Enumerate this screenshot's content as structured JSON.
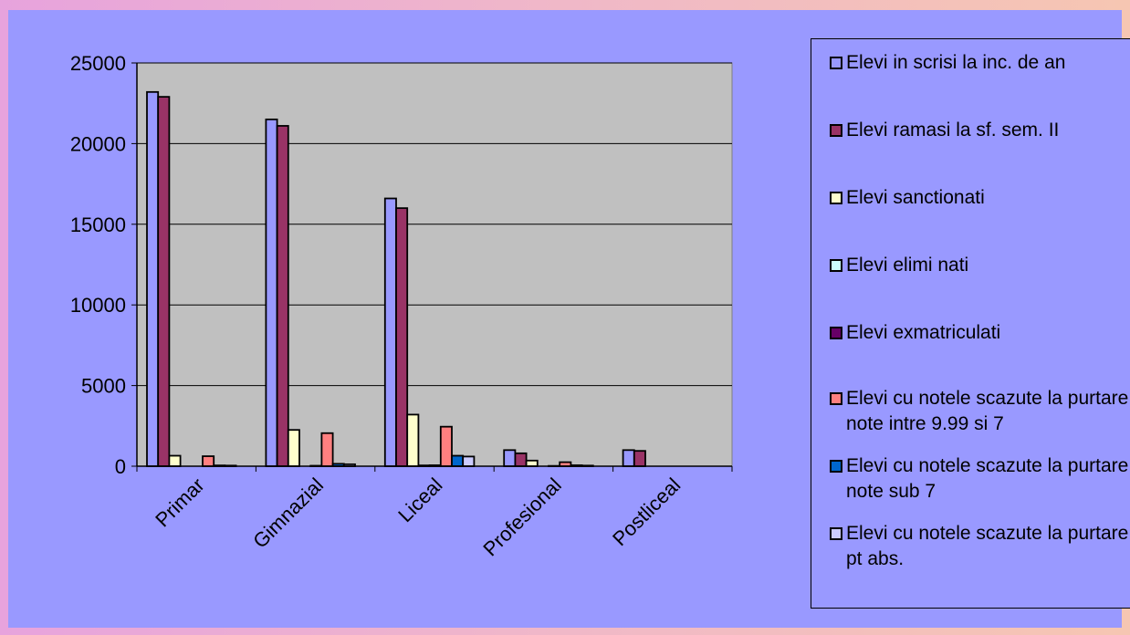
{
  "chart_data": {
    "type": "bar",
    "categories": [
      "Primar",
      "Gimnazial",
      "Liceal",
      "Profesional",
      "Postliceal"
    ],
    "ylim": [
      0,
      25000
    ],
    "yticks": [
      0,
      5000,
      10000,
      15000,
      20000,
      25000
    ],
    "ytick_labels": [
      "0",
      "5000",
      "10000",
      "15000",
      "20000",
      "25000"
    ],
    "grid": true,
    "legend_position": "right",
    "plot_background": "#c0c0c0",
    "series": [
      {
        "name": "Elevi in scrisi la inc. de an",
        "color": "#9999ff",
        "values": [
          23200,
          21500,
          16600,
          1000,
          1000
        ]
      },
      {
        "name": "Elevi ramasi la sf. sem. II",
        "color": "#993366",
        "values": [
          22900,
          21100,
          16000,
          800,
          950
        ]
      },
      {
        "name": "Elevi sanctionati",
        "color": "#ffffcc",
        "values": [
          650,
          2250,
          3200,
          350,
          0
        ]
      },
      {
        "name": "Elevi elimi nati",
        "color": "#ccffff",
        "values": [
          0,
          0,
          50,
          0,
          0
        ]
      },
      {
        "name": "Elevi exmatriculati",
        "color": "#660066",
        "values": [
          0,
          30,
          60,
          20,
          0
        ]
      },
      {
        "name": "Elevi cu notele scazute la purtare note intre 9.99 si 7",
        "color": "#ff8080",
        "values": [
          620,
          2050,
          2450,
          250,
          0
        ]
      },
      {
        "name": "Elevi cu notele scazute la purtare note sub 7",
        "color": "#0066cc",
        "values": [
          50,
          150,
          650,
          60,
          0
        ]
      },
      {
        "name": "Elevi cu notele scazute la purtare pt abs.",
        "color": "#ccccff",
        "values": [
          40,
          120,
          600,
          40,
          0
        ]
      }
    ]
  }
}
